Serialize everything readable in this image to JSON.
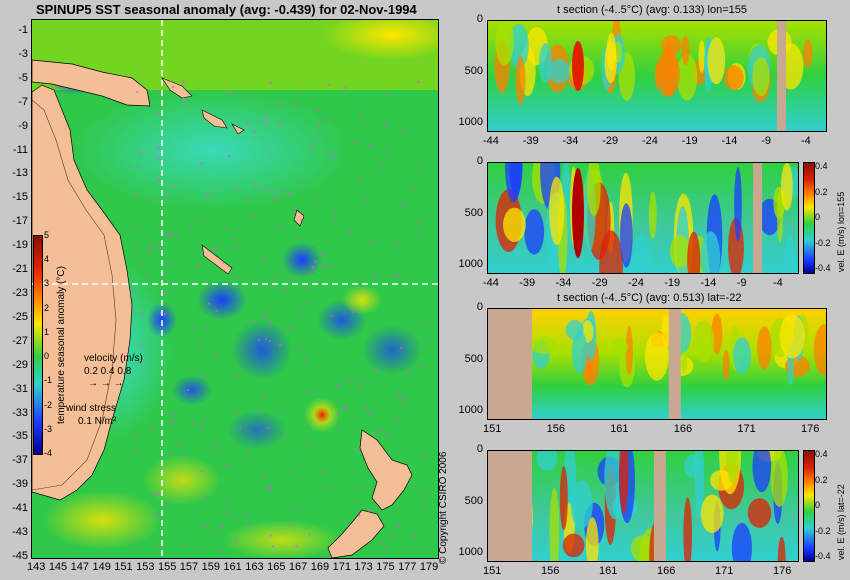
{
  "map": {
    "title": "SPINUP5 SST seasonal anomaly (avg: -0.439) for 02-Nov-1994",
    "lat_ticks": [
      "-1",
      "-3",
      "-5",
      "-7",
      "-9",
      "-11",
      "-13",
      "-15",
      "-17",
      "-19",
      "-21",
      "-23",
      "-25",
      "-27",
      "-29",
      "-31",
      "-33",
      "-35",
      "-37",
      "-39",
      "-41",
      "-43",
      "-45"
    ],
    "lon_ticks": [
      "143",
      "145",
      "147",
      "149",
      "151",
      "153",
      "155",
      "157",
      "159",
      "161",
      "163",
      "165",
      "167",
      "169",
      "171",
      "173",
      "175",
      "177",
      "179"
    ],
    "colorbar_ticks": [
      "5",
      "4",
      "3",
      "2",
      "1",
      "0",
      "-1",
      "-2",
      "-3",
      "-4"
    ],
    "colorbar_label": "temperature seasonal anomaly (°C)",
    "velocity_label": "velocity (m/s)",
    "velocity_scale": "0.2 0.4 0.8",
    "wind_label": "wind stress",
    "wind_scale": "0.1 N/m²",
    "copyright": "© Copyright CSIRO 2006",
    "colors": {
      "land": "#f4bf96",
      "ocean_mid": "#2fc84a",
      "cold": "#1c3cff",
      "warm": "#ffe600",
      "hot": "#e02000"
    }
  },
  "panels": [
    {
      "title": "t section (-4..5°C) (avg: 0.133) lon=155",
      "x_ticks": [
        "-44",
        "-39",
        "-34",
        "-29",
        "-24",
        "-19",
        "-14",
        "-9",
        "-4"
      ],
      "y_ticks": [
        "0",
        "500",
        "1000"
      ]
    },
    {
      "title": "",
      "x_ticks": [
        "-44",
        "-39",
        "-34",
        "-29",
        "-24",
        "-19",
        "-14",
        "-9",
        "-4"
      ],
      "y_ticks": [
        "0",
        "500",
        "1000"
      ],
      "colorbar_ticks": [
        "0.4",
        "0.2",
        "0",
        "-0.2",
        "-0.4"
      ],
      "colorbar_label": "vel. E (m/s) lon=155"
    },
    {
      "title": "t section (-4..5°C) (avg: 0.513) lat=-22",
      "x_ticks": [
        "151",
        "156",
        "161",
        "166",
        "171",
        "176"
      ],
      "y_ticks": [
        "0",
        "500",
        "1000"
      ]
    },
    {
      "title": "",
      "x_ticks": [
        "151",
        "156",
        "161",
        "166",
        "171",
        "176"
      ],
      "y_ticks": [
        "0",
        "500",
        "1000"
      ],
      "colorbar_ticks": [
        "0.4",
        "0.2",
        "0",
        "-0.2",
        "-0.4"
      ],
      "colorbar_label": "vel. E (m/s) lat=-22"
    }
  ]
}
